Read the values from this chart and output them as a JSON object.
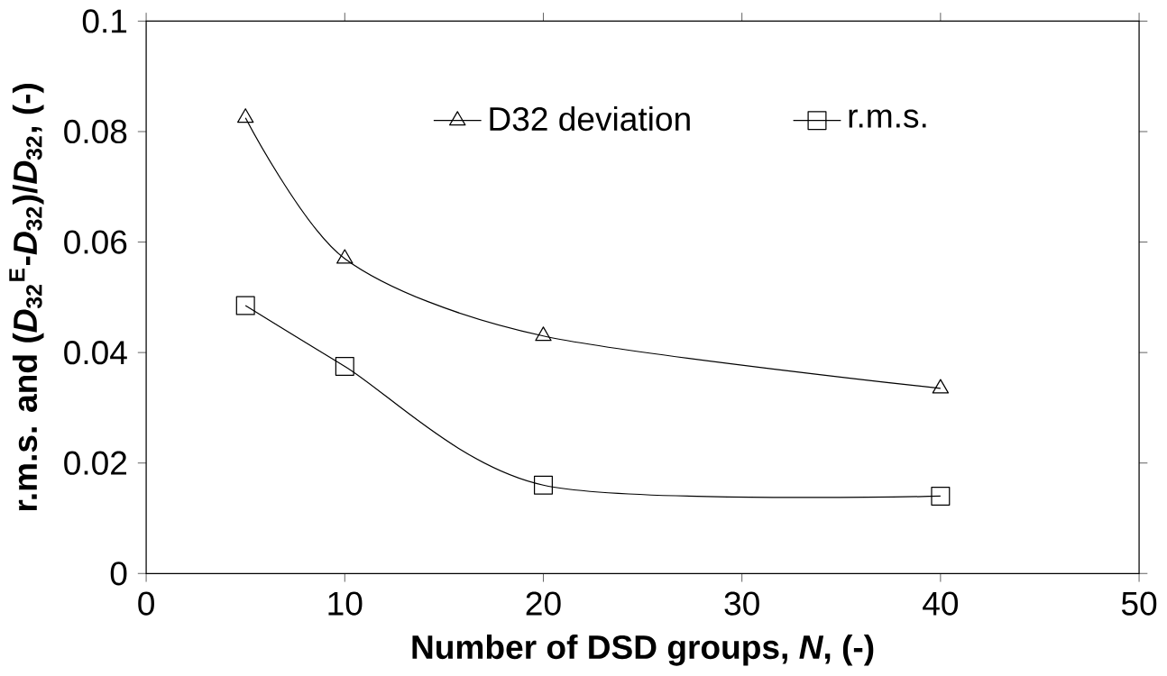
{
  "chart_data": {
    "type": "line",
    "xlabel": "Number of DSD groups, *N*,  (-)",
    "ylabel": "r.m.s. and (*D*$_{32}$$^{E}$-*D*$_{32}$)/*D*$_{32}$, (-)",
    "x": [
      5,
      10,
      20,
      40
    ],
    "series": [
      {
        "name": "D32 deviation",
        "color": "#000000",
        "marker": "triangle",
        "values": [
          0.0825,
          0.057,
          0.043,
          0.0335
        ]
      },
      {
        "name": "r.m.s.",
        "color": "#000000",
        "marker": "square",
        "values": [
          0.0485,
          0.0375,
          0.016,
          0.014
        ]
      }
    ],
    "xlim": [
      0,
      50
    ],
    "xticks": [
      0,
      10,
      20,
      30,
      40,
      50
    ],
    "ylim": [
      0,
      0.1
    ],
    "yticks": [
      0,
      0.02,
      0.04,
      0.06,
      0.08,
      0.1
    ],
    "grid": false,
    "legend": "top",
    "line_style": "solid"
  }
}
